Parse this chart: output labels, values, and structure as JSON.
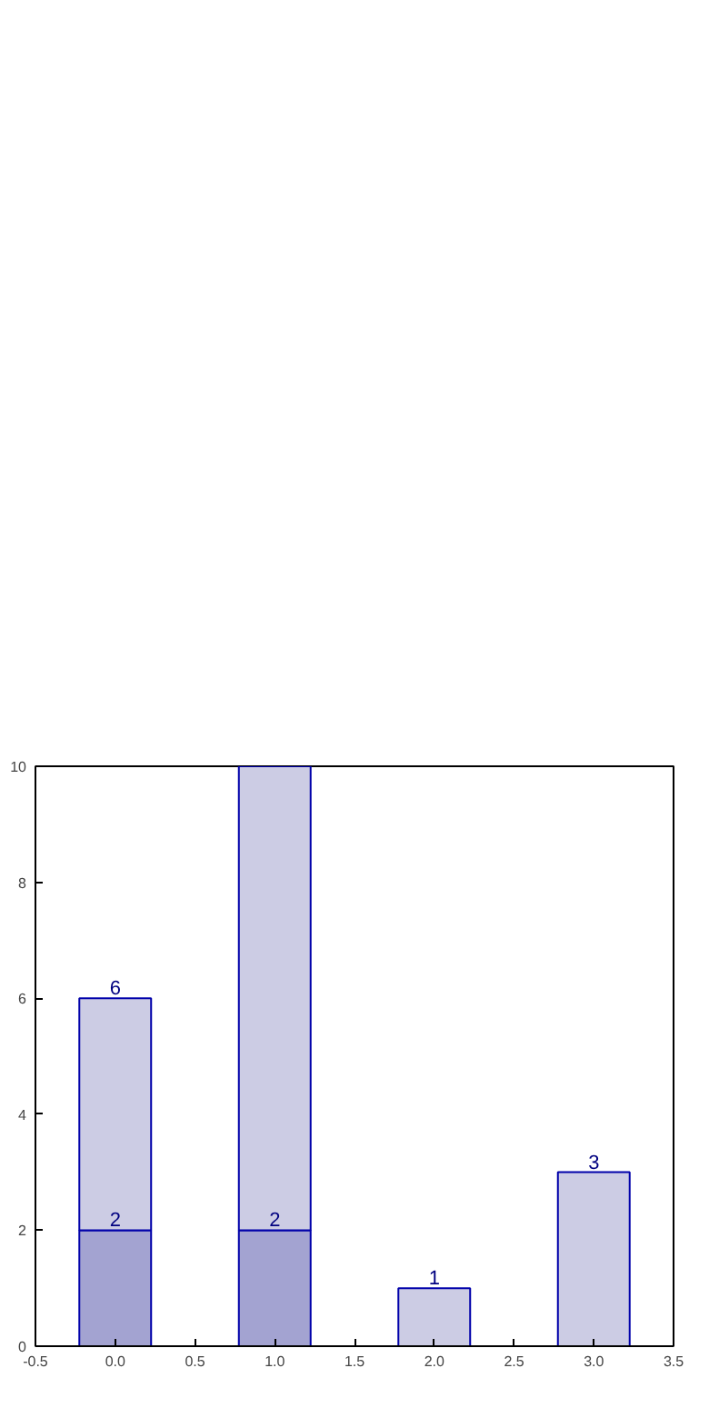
{
  "chart_data": {
    "type": "bar",
    "stacked": true,
    "x": [
      0,
      1,
      2,
      3
    ],
    "series": [
      {
        "color": "#a3a3d1",
        "values": [
          2,
          2,
          null,
          null
        ],
        "value_labels": [
          "2",
          "2",
          null,
          null
        ]
      },
      {
        "color": "#ccccE4",
        "values": [
          4,
          8,
          1,
          3
        ]
      }
    ],
    "totals": [
      "6",
      "10",
      "1",
      "3"
    ],
    "xlim": [
      -0.5,
      3.5
    ],
    "xticks": [
      -0.5,
      {
        "value": 0,
        "label": "0.0"
      },
      0.5,
      {
        "value": 1,
        "label": "1.0"
      },
      1.5,
      {
        "value": 2,
        "label": "2.0"
      },
      2.5,
      {
        "value": 3,
        "label": "3.0"
      },
      3.5
    ],
    "ylim": [
      0,
      10
    ],
    "yticks": [
      0,
      2,
      4,
      6,
      8,
      10
    ],
    "grid": false
  }
}
